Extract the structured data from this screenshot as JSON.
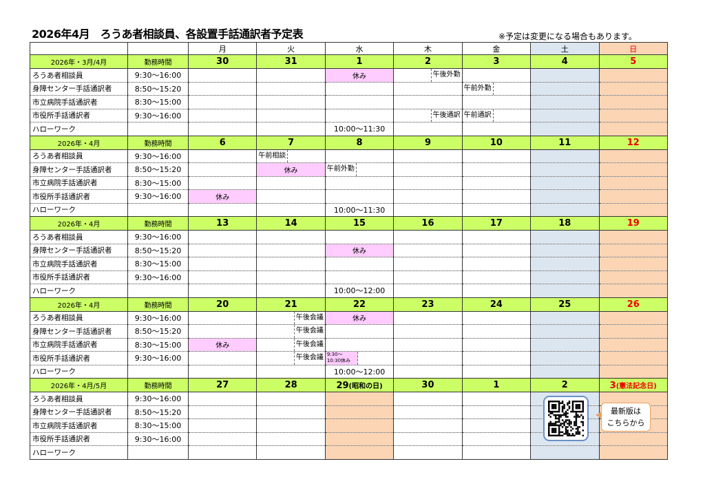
{
  "title": "2026年4月　ろうあ者相談員、各設置手話通訳者予定表",
  "note": "※予定は変更になる場合もあります。",
  "time_header": "勤務時間",
  "weekdays": [
    "月",
    "火",
    "水",
    "木",
    "金",
    "土",
    "日"
  ],
  "staff": [
    {
      "name": "ろうあ者相談員",
      "time": "9:30〜16:00"
    },
    {
      "name": "身障センター手話通訳者",
      "time": "8:50〜15:20"
    },
    {
      "name": "市立病院手話通訳者",
      "time": "8:30〜15:00"
    },
    {
      "name": "市役所手話通訳者",
      "time": "9:30〜16:00"
    },
    {
      "name": "ハローワーク",
      "time": ""
    }
  ],
  "colors": {
    "week_header": "#ccff66",
    "saturday": "#dce6f1",
    "sunday_holiday": "#fcd5b4",
    "leave": "#ffccff",
    "holiday_text": "#ee0000"
  },
  "weeks": [
    {
      "label": "2026年・3月/4月",
      "days": [
        "30",
        "31",
        "1",
        "2",
        "3",
        "4",
        "5"
      ],
      "day_notes": [
        "",
        "",
        "",
        "",
        "",
        "",
        ""
      ],
      "holiday_cols": [],
      "entries": [
        {
          "row": 0,
          "col": 2,
          "text": "休み",
          "type": "pink"
        },
        {
          "row": 0,
          "col": 3,
          "text": "午後外勤",
          "type": "right"
        },
        {
          "row": 1,
          "col": 4,
          "text": "午前外勤",
          "type": "left"
        },
        {
          "row": 3,
          "col": 3,
          "text": "午後通訳",
          "type": "right"
        },
        {
          "row": 3,
          "col": 4,
          "text": "午前通訳",
          "type": "left"
        },
        {
          "row": 4,
          "col": 2,
          "text": "10:00〜11:30",
          "type": "center"
        }
      ]
    },
    {
      "label": "2026年・4月",
      "days": [
        "6",
        "7",
        "8",
        "9",
        "10",
        "11",
        "12"
      ],
      "day_notes": [
        "",
        "",
        "",
        "",
        "",
        "",
        ""
      ],
      "holiday_cols": [],
      "entries": [
        {
          "row": 0,
          "col": 1,
          "text": "午前相談",
          "type": "left"
        },
        {
          "row": 1,
          "col": 1,
          "text": "休み",
          "type": "pink"
        },
        {
          "row": 1,
          "col": 2,
          "text": "午前外勤",
          "type": "left"
        },
        {
          "row": 3,
          "col": 0,
          "text": "休み",
          "type": "pink"
        },
        {
          "row": 4,
          "col": 2,
          "text": "10:00〜11:30",
          "type": "center"
        }
      ]
    },
    {
      "label": "2026年・4月",
      "days": [
        "13",
        "14",
        "15",
        "16",
        "17",
        "18",
        "19"
      ],
      "day_notes": [
        "",
        "",
        "",
        "",
        "",
        "",
        ""
      ],
      "holiday_cols": [],
      "entries": [
        {
          "row": 1,
          "col": 2,
          "text": "休み",
          "type": "pink"
        },
        {
          "row": 4,
          "col": 2,
          "text": "10:00〜12:00",
          "type": "center"
        }
      ]
    },
    {
      "label": "2026年・4月",
      "days": [
        "20",
        "21",
        "22",
        "23",
        "24",
        "25",
        "26"
      ],
      "day_notes": [
        "",
        "",
        "",
        "",
        "",
        "",
        ""
      ],
      "holiday_cols": [],
      "entries": [
        {
          "row": 0,
          "col": 1,
          "text": "午後会議",
          "type": "right"
        },
        {
          "row": 0,
          "col": 2,
          "text": "休み",
          "type": "pink"
        },
        {
          "row": 1,
          "col": 1,
          "text": "午後会議",
          "type": "right"
        },
        {
          "row": 2,
          "col": 0,
          "text": "休み",
          "type": "pink"
        },
        {
          "row": 2,
          "col": 1,
          "text": "午後会議",
          "type": "right"
        },
        {
          "row": 3,
          "col": 1,
          "text": "午後会議",
          "type": "right"
        },
        {
          "row": 3,
          "col": 2,
          "text": "9:30〜 10:30休み",
          "type": "small"
        },
        {
          "row": 4,
          "col": 2,
          "text": "10:00〜12:00",
          "type": "center"
        }
      ]
    },
    {
      "label": "2026年・4月/5月",
      "days": [
        "27",
        "28",
        "29",
        "30",
        "1",
        "2",
        "3"
      ],
      "day_notes": [
        "",
        "",
        "(昭和の日)",
        "",
        "",
        "",
        "(憲法記念日)"
      ],
      "holiday_cols": [
        2
      ],
      "entries": []
    }
  ],
  "qr": {
    "caption": "最新版は\nこちらから"
  }
}
